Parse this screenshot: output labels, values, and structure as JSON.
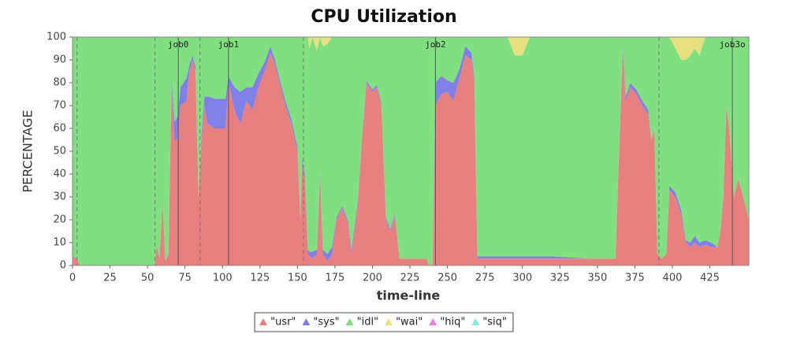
{
  "chart_data": {
    "type": "stacked_area",
    "title": "CPU Utilization",
    "xlabel": "time-line",
    "ylabel": "PERCENTAGE",
    "xlim": [
      0,
      451
    ],
    "ylim": [
      0,
      100
    ],
    "xticks": [
      0,
      25,
      50,
      75,
      100,
      125,
      150,
      175,
      200,
      225,
      250,
      275,
      300,
      325,
      350,
      375,
      400,
      425
    ],
    "yticks": [
      0,
      10,
      20,
      30,
      40,
      50,
      60,
      70,
      80,
      90,
      100
    ],
    "legend": "bottom",
    "markers": [
      {
        "x": 70.5,
        "label": "job0"
      },
      {
        "x": 104,
        "label": "job1"
      },
      {
        "x": 242,
        "label": "job2"
      },
      {
        "x": 440,
        "label": "job3o"
      }
    ],
    "dashed_lines": [
      3,
      55,
      85,
      154,
      391
    ],
    "x": [
      0,
      3,
      5,
      55,
      56,
      58,
      60,
      62,
      64,
      66,
      68,
      70,
      72,
      76,
      78,
      80,
      82,
      84,
      86,
      88,
      90,
      95,
      100,
      102,
      104,
      108,
      112,
      116,
      120,
      124,
      128,
      132,
      135,
      138,
      142,
      146,
      150,
      152,
      153,
      155,
      157,
      158,
      160,
      163,
      165,
      167,
      170,
      173,
      176,
      180,
      184,
      186,
      190,
      193,
      196,
      200,
      203,
      206,
      209,
      212,
      215,
      218,
      225,
      236,
      238,
      240,
      242,
      246,
      250,
      254,
      258,
      262,
      266,
      268,
      270,
      290,
      295,
      300,
      305,
      320,
      345,
      362,
      365,
      367,
      369,
      372,
      376,
      380,
      384,
      386,
      388,
      390,
      393,
      396,
      398,
      402,
      406,
      409,
      412,
      415,
      418,
      422,
      426,
      430,
      432,
      434,
      436,
      438,
      441,
      444,
      448,
      451
    ],
    "series": [
      {
        "name": "\"usr\"",
        "color": "#e88080",
        "values": [
          4,
          3,
          0,
          0,
          9,
          3,
          28,
          2,
          5,
          78,
          55,
          55,
          70,
          72,
          85,
          90,
          85,
          30,
          55,
          70,
          62,
          60,
          60,
          60,
          80,
          68,
          62,
          72,
          68,
          78,
          85,
          93,
          88,
          80,
          70,
          62,
          50,
          20,
          45,
          38,
          5,
          4,
          3,
          5,
          40,
          5,
          2,
          5,
          20,
          25,
          18,
          5,
          25,
          55,
          80,
          76,
          78,
          70,
          20,
          15,
          22,
          3,
          3,
          3,
          0,
          0,
          70,
          75,
          76,
          72,
          82,
          92,
          90,
          80,
          3,
          3,
          3,
          3,
          3,
          3,
          3,
          3,
          60,
          95,
          72,
          78,
          75,
          70,
          66,
          55,
          60,
          5,
          3,
          5,
          33,
          30,
          22,
          10,
          8,
          10,
          8,
          9,
          8,
          8,
          15,
          30,
          70,
          60,
          30,
          38,
          28,
          20
        ]
      },
      {
        "name": "\"sys\"",
        "color": "#8080e8",
        "values": [
          0,
          0,
          0,
          0,
          0,
          0,
          0,
          0,
          0,
          4,
          8,
          10,
          8,
          10,
          3,
          2,
          2,
          0,
          3,
          4,
          12,
          13,
          13,
          13,
          3,
          10,
          14,
          6,
          10,
          6,
          4,
          3,
          2,
          2,
          2,
          2,
          2,
          1,
          2,
          2,
          2,
          2,
          3,
          2,
          2,
          2,
          3,
          3,
          1,
          1,
          1,
          2,
          2,
          1,
          1,
          1,
          1,
          1,
          1,
          1,
          1,
          0,
          0,
          0,
          0,
          0,
          10,
          8,
          5,
          8,
          4,
          4,
          3,
          2,
          1,
          1,
          1,
          1,
          1,
          1,
          0,
          0,
          1,
          2,
          2,
          2,
          2,
          2,
          2,
          0,
          0,
          0,
          0,
          0,
          2,
          2,
          2,
          1,
          2,
          3,
          2,
          2,
          2,
          0,
          0,
          0,
          0,
          0,
          0,
          0,
          0,
          0
        ]
      },
      {
        "name": "\"idl\"",
        "color": "#80e080",
        "values": [
          96,
          97,
          100,
          100,
          91,
          97,
          72,
          98,
          95,
          18,
          37,
          35,
          22,
          18,
          12,
          8,
          13,
          70,
          42,
          26,
          26,
          27,
          27,
          27,
          17,
          22,
          24,
          22,
          22,
          16,
          11,
          4,
          10,
          18,
          28,
          36,
          48,
          79,
          53,
          60,
          93,
          89,
          94,
          87,
          58,
          89,
          92,
          92,
          79,
          74,
          81,
          93,
          73,
          44,
          19,
          23,
          21,
          29,
          79,
          84,
          77,
          97,
          97,
          97,
          100,
          100,
          20,
          17,
          19,
          20,
          14,
          4,
          7,
          18,
          96,
          96,
          88,
          88,
          96,
          96,
          97,
          97,
          39,
          3,
          26,
          20,
          23,
          28,
          32,
          45,
          40,
          95,
          97,
          95,
          65,
          63,
          66,
          79,
          82,
          82,
          82,
          89,
          90,
          92,
          85,
          70,
          30,
          40,
          70,
          62,
          72,
          80
        ]
      },
      {
        "name": "\"wai\"",
        "color": "#e8e080",
        "values": [
          0,
          0,
          0,
          0,
          0,
          0,
          0,
          0,
          0,
          0,
          0,
          0,
          0,
          0,
          0,
          0,
          0,
          0,
          0,
          0,
          0,
          0,
          0,
          0,
          0,
          0,
          0,
          0,
          0,
          0,
          0,
          0,
          0,
          0,
          0,
          0,
          0,
          0,
          0,
          0,
          0,
          5,
          0,
          6,
          0,
          4,
          3,
          0,
          0,
          0,
          0,
          0,
          0,
          0,
          0,
          0,
          0,
          0,
          0,
          0,
          0,
          0,
          0,
          0,
          0,
          0,
          0,
          0,
          0,
          0,
          0,
          0,
          0,
          0,
          0,
          0,
          8,
          8,
          0,
          0,
          0,
          0,
          0,
          0,
          0,
          0,
          0,
          0,
          0,
          0,
          0,
          0,
          0,
          0,
          0,
          5,
          10,
          10,
          8,
          5,
          8,
          0,
          0,
          0,
          0,
          0,
          0,
          0,
          0,
          0,
          0,
          0
        ]
      },
      {
        "name": "\"hiq\"",
        "color": "#e880e8",
        "values": [
          0,
          0,
          0,
          0,
          0,
          0,
          0,
          0,
          0,
          0,
          0,
          0,
          0,
          0,
          0,
          0,
          0,
          0,
          0,
          0,
          0,
          0,
          0,
          0,
          0,
          0,
          0,
          0,
          0,
          0,
          0,
          0,
          0,
          0,
          0,
          0,
          0,
          0,
          0,
          0,
          0,
          0,
          0,
          0,
          0,
          0,
          0,
          0,
          0,
          0,
          0,
          0,
          0,
          0,
          0,
          0,
          0,
          0,
          0,
          0,
          0,
          0,
          0,
          0,
          0,
          0,
          0,
          0,
          0,
          0,
          0,
          0,
          0,
          0,
          0,
          0,
          0,
          0,
          0,
          0,
          0,
          0,
          0,
          0,
          0,
          0,
          0,
          0,
          0,
          0,
          0,
          0,
          0,
          0,
          0,
          0,
          0,
          0,
          0,
          0,
          0,
          0,
          0,
          0,
          0,
          0,
          0,
          0,
          0,
          0,
          0,
          0
        ]
      },
      {
        "name": "\"siq\"",
        "color": "#80e8e8",
        "values": [
          0,
          0,
          0,
          0,
          0,
          0,
          0,
          0,
          0,
          0,
          0,
          0,
          0,
          0,
          0,
          0,
          0,
          0,
          0,
          0,
          0,
          0,
          0,
          0,
          0,
          0,
          0,
          0,
          0,
          0,
          0,
          0,
          0,
          0,
          0,
          0,
          0,
          0,
          0,
          0,
          0,
          0,
          0,
          0,
          0,
          0,
          0,
          0,
          0,
          0,
          0,
          0,
          0,
          0,
          0,
          0,
          0,
          0,
          0,
          0,
          0,
          0,
          0,
          0,
          0,
          0,
          0,
          0,
          0,
          0,
          0,
          0,
          0,
          0,
          0,
          0,
          0,
          0,
          0,
          0,
          0,
          0,
          0,
          0,
          0,
          0,
          0,
          0,
          0,
          0,
          0,
          0,
          0,
          0,
          0,
          0,
          0,
          0,
          0,
          0,
          0,
          0,
          0,
          0,
          0,
          0,
          0,
          0,
          0,
          0,
          0,
          0
        ]
      }
    ]
  }
}
